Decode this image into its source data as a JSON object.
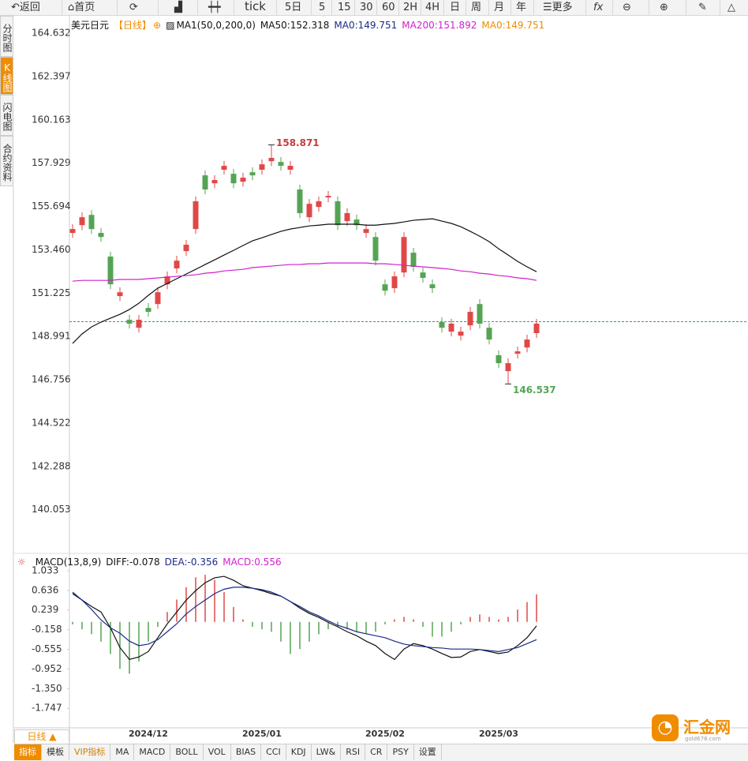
{
  "toolbar": [
    "返回",
    "首页",
    "tick",
    "5日",
    "5",
    "15",
    "30",
    "60",
    "2H",
    "4H",
    "日",
    "周",
    "月",
    "年",
    "更多"
  ],
  "sidebar": [
    "分时图",
    "K线图",
    "闪电图",
    "合约资料"
  ],
  "period_switch": "日线 ▲",
  "tabs": [
    "指标",
    "模板",
    "VIP指标",
    "MA",
    "MACD",
    "BOLL",
    "VOL",
    "BIAS",
    "CCI",
    "KDJ",
    "LW&",
    "RSI",
    "CR",
    "PSY",
    "设置"
  ],
  "logo": {
    "name": "汇金网",
    "site": "gold678.com"
  },
  "chart_data": [
    {
      "type": "candlestick",
      "title": "美元日元",
      "period": "【日线】",
      "indicator": "MA1(50,0,200,0)",
      "ref_labels": [
        "MA0:149.751",
        "MA0:149.751"
      ],
      "ref_line": 149.751,
      "up_color": "#e04848",
      "down_color": "#54a454",
      "categories": [
        null,
        null,
        null,
        null,
        null,
        null,
        null,
        null,
        "2024/12",
        null,
        null,
        null,
        null,
        null,
        null,
        null,
        null,
        null,
        null,
        null,
        "2025/01",
        null,
        null,
        null,
        null,
        null,
        null,
        null,
        null,
        null,
        null,
        null,
        null,
        "2025/02",
        null,
        null,
        null,
        null,
        null,
        null,
        null,
        null,
        null,
        null,
        null,
        "2025/03",
        null,
        null,
        null,
        null
      ],
      "open": [
        154.33,
        154.73,
        155.26,
        154.33,
        153.11,
        151.07,
        149.85,
        149.44,
        150.46,
        150.66,
        151.68,
        152.5,
        153.39,
        154.53,
        157.3,
        156.89,
        157.59,
        157.38,
        156.97,
        157.46,
        157.59,
        158.03,
        157.99,
        157.59,
        156.57,
        155.14,
        155.67,
        156.16,
        155.96,
        154.94,
        155.02,
        154.33,
        154.12,
        151.68,
        151.48,
        152.29,
        153.31,
        152.29,
        151.68,
        149.73,
        149.24,
        149.03,
        149.56,
        150.66,
        149.44,
        148.02,
        147.2,
        148.1,
        148.42,
        149.16
      ],
      "close": [
        154.53,
        155.14,
        154.53,
        154.12,
        151.68,
        151.27,
        149.65,
        149.85,
        150.26,
        151.27,
        152.09,
        152.9,
        153.72,
        155.96,
        156.57,
        157.06,
        157.79,
        156.89,
        157.18,
        157.3,
        157.87,
        158.2,
        157.79,
        157.79,
        155.35,
        155.83,
        155.96,
        156.24,
        154.73,
        155.35,
        154.73,
        154.53,
        152.9,
        151.35,
        152.09,
        154.12,
        152.58,
        152.01,
        151.48,
        149.44,
        149.65,
        149.24,
        150.26,
        149.65,
        148.83,
        147.61,
        147.61,
        148.22,
        148.83,
        149.65
      ],
      "high": [
        154.78,
        155.39,
        155.51,
        154.58,
        153.36,
        151.52,
        150.1,
        150.1,
        150.71,
        151.52,
        152.34,
        153.15,
        153.97,
        156.21,
        157.55,
        157.31,
        158.04,
        157.63,
        157.43,
        157.71,
        158.12,
        158.871,
        158.24,
        158.04,
        156.82,
        156.08,
        156.21,
        156.49,
        156.21,
        155.6,
        155.27,
        154.78,
        154.37,
        151.93,
        152.34,
        154.37,
        153.56,
        152.54,
        151.93,
        149.98,
        149.9,
        149.49,
        150.51,
        150.91,
        149.69,
        148.27,
        147.86,
        148.47,
        149.08,
        149.9
      ],
      "low": [
        154.08,
        154.48,
        154.28,
        153.87,
        151.43,
        150.82,
        149.4,
        149.19,
        150.01,
        150.41,
        151.43,
        152.25,
        153.14,
        154.28,
        156.32,
        156.64,
        157.34,
        156.64,
        156.72,
        157.05,
        157.34,
        157.78,
        157.54,
        157.34,
        155.1,
        154.89,
        155.42,
        155.91,
        154.48,
        154.69,
        154.48,
        154.08,
        152.65,
        151.1,
        151.23,
        152.04,
        152.33,
        151.76,
        151.23,
        149.19,
        148.99,
        148.78,
        149.31,
        149.4,
        148.58,
        147.36,
        146.537,
        147.85,
        148.17,
        148.91
      ],
      "high_marker": 158.871,
      "low_marker": 146.537,
      "series": [
        {
          "name": "MA50:152.318",
          "color": "#111111",
          "values": [
            148.63,
            149.12,
            149.48,
            149.73,
            149.93,
            150.13,
            150.38,
            150.7,
            151.11,
            151.48,
            151.72,
            151.97,
            152.21,
            152.45,
            152.7,
            152.94,
            153.19,
            153.43,
            153.68,
            153.92,
            154.08,
            154.25,
            154.41,
            154.53,
            154.61,
            154.69,
            154.73,
            154.78,
            154.78,
            154.78,
            154.78,
            154.73,
            154.73,
            154.78,
            154.82,
            154.9,
            154.98,
            155.02,
            155.06,
            154.94,
            154.82,
            154.65,
            154.41,
            154.16,
            153.88,
            153.51,
            153.19,
            152.86,
            152.58,
            152.33
          ]
        },
        {
          "name": "MA200:151.892",
          "color": "#d020d0",
          "values": [
            151.84,
            151.88,
            151.88,
            151.88,
            151.88,
            151.93,
            151.93,
            151.93,
            151.97,
            152.01,
            152.05,
            152.09,
            152.13,
            152.17,
            152.25,
            152.29,
            152.37,
            152.41,
            152.45,
            152.54,
            152.58,
            152.62,
            152.66,
            152.7,
            152.7,
            152.74,
            152.74,
            152.78,
            152.78,
            152.78,
            152.78,
            152.78,
            152.74,
            152.74,
            152.7,
            152.66,
            152.62,
            152.58,
            152.54,
            152.5,
            152.45,
            152.37,
            152.33,
            152.25,
            152.21,
            152.13,
            152.09,
            152.01,
            151.97,
            151.88
          ]
        }
      ],
      "ylim": [
        137.84,
        165.53
      ],
      "yticks": [
        164.632,
        162.397,
        160.163,
        157.929,
        155.694,
        {
          "value": 153.46,
          "label": "153.460"
        },
        151.225,
        148.991,
        146.756,
        144.522,
        142.288,
        140.053
      ]
    },
    {
      "type": "macd",
      "indicator": "MACD(13,8,9)",
      "bars": {
        "name": "MACD:0.556",
        "up_color": "#e04848",
        "down_color": "#54a454",
        "values": [
          -0.05,
          -0.15,
          -0.25,
          -0.4,
          -0.65,
          -0.95,
          -1.05,
          -0.8,
          -0.4,
          -0.1,
          0.2,
          0.45,
          0.7,
          0.9,
          0.95,
          0.85,
          0.6,
          0.3,
          0.05,
          -0.1,
          -0.15,
          -0.2,
          -0.4,
          -0.65,
          -0.55,
          -0.4,
          -0.25,
          -0.15,
          -0.1,
          -0.15,
          -0.2,
          -0.25,
          -0.2,
          -0.05,
          0.05,
          0.1,
          0.05,
          -0.1,
          -0.3,
          -0.3,
          -0.2,
          -0.05,
          0.1,
          0.15,
          0.1,
          0.05,
          0.1,
          0.25,
          0.4,
          0.556
        ]
      },
      "series": [
        {
          "name": "DIFF:-0.078",
          "color": "#111111",
          "values": [
            0.57,
            0.44,
            0.31,
            0.2,
            -0.12,
            -0.52,
            -0.76,
            -0.71,
            -0.6,
            -0.32,
            -0.04,
            0.2,
            0.44,
            0.63,
            0.79,
            0.89,
            0.92,
            0.84,
            0.73,
            0.68,
            0.63,
            0.57,
            0.52,
            0.41,
            0.28,
            0.17,
            0.09,
            -0.01,
            -0.1,
            -0.2,
            -0.28,
            -0.39,
            -0.48,
            -0.64,
            -0.76,
            -0.55,
            -0.44,
            -0.48,
            -0.55,
            -0.64,
            -0.72,
            -0.71,
            -0.6,
            -0.56,
            -0.6,
            -0.64,
            -0.61,
            -0.48,
            -0.32,
            -0.08
          ]
        },
        {
          "name": "DEA:-0.356",
          "color": "#1a2a8a",
          "values": [
            0.6,
            0.44,
            0.25,
            0.04,
            -0.12,
            -0.23,
            -0.39,
            -0.48,
            -0.45,
            -0.36,
            -0.2,
            -0.04,
            0.16,
            0.31,
            0.44,
            0.57,
            0.66,
            0.7,
            0.7,
            0.68,
            0.65,
            0.6,
            0.52,
            0.41,
            0.31,
            0.2,
            0.12,
            0.02,
            -0.07,
            -0.13,
            -0.2,
            -0.24,
            -0.28,
            -0.32,
            -0.39,
            -0.45,
            -0.48,
            -0.5,
            -0.52,
            -0.53,
            -0.55,
            -0.55,
            -0.55,
            -0.56,
            -0.58,
            -0.6,
            -0.56,
            -0.52,
            -0.44,
            -0.36
          ]
        }
      ],
      "ylim": [
        -2.11,
        1.24
      ],
      "yticks": [
        1.033,
        0.636,
        0.239,
        -0.158,
        -0.555,
        -0.952,
        {
          "value": -1.35,
          "label": "-1.350"
        },
        -1.747
      ]
    }
  ]
}
